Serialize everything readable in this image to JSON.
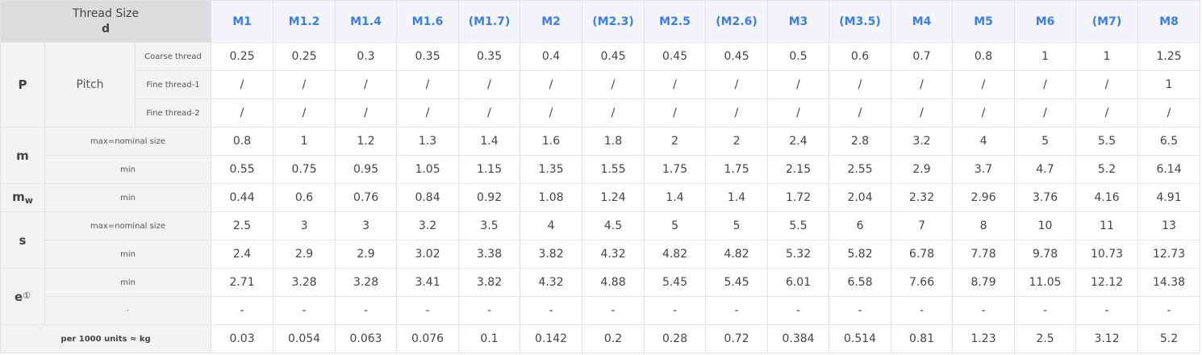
{
  "header": {
    "corner_line1": "Thread Size",
    "corner_line2": "d",
    "sizes": [
      "M1",
      "M1.2",
      "M1.4",
      "M1.6",
      "(M1.7)",
      "M2",
      "(M2.3)",
      "M2.5",
      "(M2.6)",
      "M3",
      "(M3.5)",
      "M4",
      "M5",
      "M6",
      "(M7)",
      "M8"
    ]
  },
  "params": {
    "p": "P",
    "pitch": "Pitch",
    "m": "m",
    "mw_base": "m",
    "mw_sub": "w",
    "s": "s",
    "e_base": "e",
    "e_note": "①"
  },
  "labels": {
    "coarse": "Coarse thread",
    "fine1": "Fine thread-1",
    "fine2": "Fine thread-2",
    "max_nominal": "max=nominal size",
    "min": "min",
    "dot": "·",
    "weight": "per 1000 units ≈ kg"
  },
  "rows": {
    "p_coarse": [
      "0.25",
      "0.25",
      "0.3",
      "0.35",
      "0.35",
      "0.4",
      "0.45",
      "0.45",
      "0.45",
      "0.5",
      "0.6",
      "0.7",
      "0.8",
      "1",
      "1",
      "1.25"
    ],
    "p_fine1": [
      "/",
      "/",
      "/",
      "/",
      "/",
      "/",
      "/",
      "/",
      "/",
      "/",
      "/",
      "/",
      "/",
      "/",
      "/",
      "1"
    ],
    "p_fine2": [
      "/",
      "/",
      "/",
      "/",
      "/",
      "/",
      "/",
      "/",
      "/",
      "/",
      "/",
      "/",
      "/",
      "/",
      "/",
      "/"
    ],
    "m_max": [
      "0.8",
      "1",
      "1.2",
      "1.3",
      "1.4",
      "1.6",
      "1.8",
      "2",
      "2",
      "2.4",
      "2.8",
      "3.2",
      "4",
      "5",
      "5.5",
      "6.5"
    ],
    "m_min": [
      "0.55",
      "0.75",
      "0.95",
      "1.05",
      "1.15",
      "1.35",
      "1.55",
      "1.75",
      "1.75",
      "2.15",
      "2.55",
      "2.9",
      "3.7",
      "4.7",
      "5.2",
      "6.14"
    ],
    "mw_min": [
      "0.44",
      "0.6",
      "0.76",
      "0.84",
      "0.92",
      "1.08",
      "1.24",
      "1.4",
      "1.4",
      "1.72",
      "2.04",
      "2.32",
      "2.96",
      "3.76",
      "4.16",
      "4.91"
    ],
    "s_max": [
      "2.5",
      "3",
      "3",
      "3.2",
      "3.5",
      "4",
      "4.5",
      "5",
      "5",
      "5.5",
      "6",
      "7",
      "8",
      "10",
      "11",
      "13"
    ],
    "s_min": [
      "2.4",
      "2.9",
      "2.9",
      "3.02",
      "3.38",
      "3.82",
      "4.32",
      "4.82",
      "4.82",
      "5.32",
      "5.82",
      "6.78",
      "7.78",
      "9.78",
      "10.73",
      "12.73"
    ],
    "e_min": [
      "2.71",
      "3.28",
      "3.28",
      "3.41",
      "3.82",
      "4.32",
      "4.88",
      "5.45",
      "5.45",
      "6.01",
      "6.58",
      "7.66",
      "8.79",
      "11.05",
      "12.12",
      "14.38"
    ],
    "e_dot": [
      "-",
      "-",
      "-",
      "-",
      "-",
      "-",
      "-",
      "-",
      "-",
      "-",
      "-",
      "-",
      "-",
      "-",
      "-",
      "-"
    ],
    "weight": [
      "0.03",
      "0.054",
      "0.063",
      "0.076",
      "0.1",
      "0.142",
      "0.2",
      "0.28",
      "0.72",
      "0.384",
      "0.514",
      "0.81",
      "1.23",
      "2.5",
      "3.12",
      "5.2"
    ]
  }
}
